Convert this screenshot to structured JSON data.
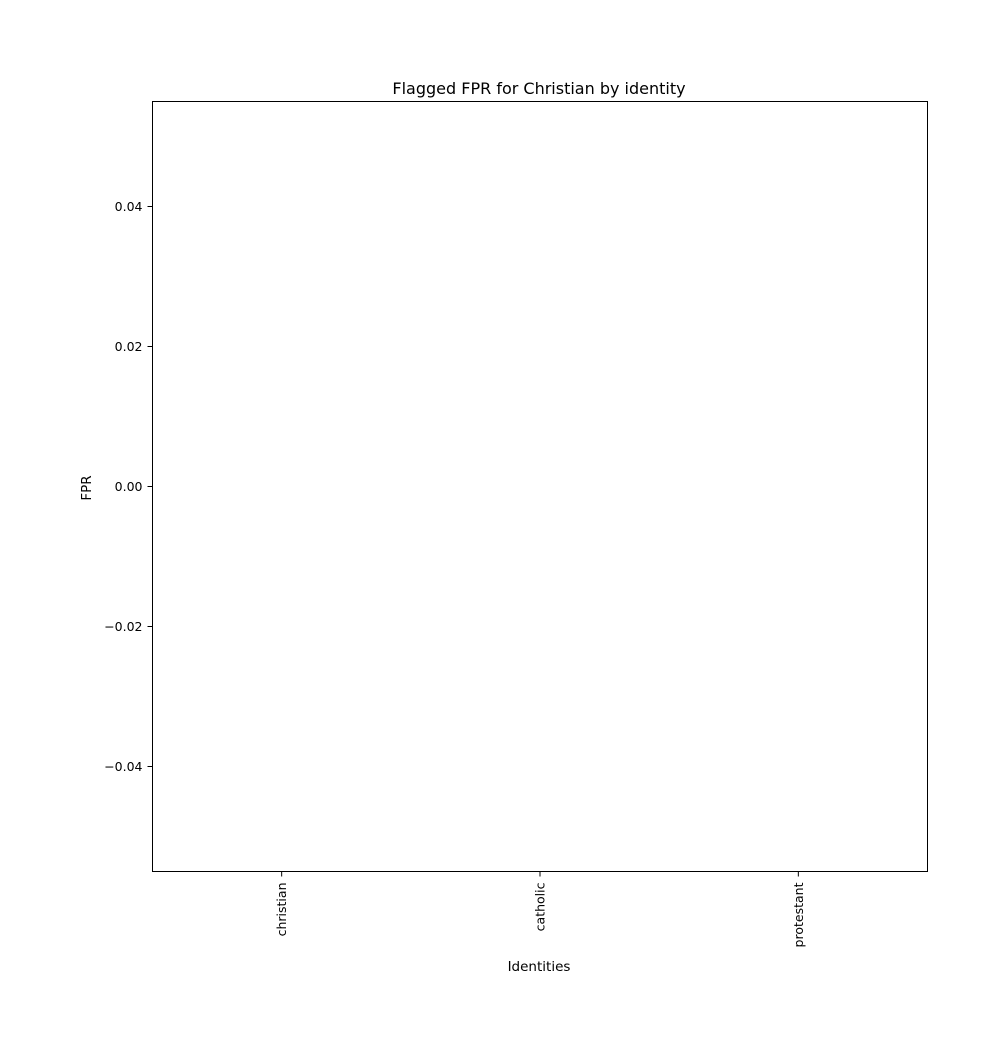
{
  "chart_data": {
    "type": "bar",
    "title": "Flagged FPR for Christian by identity",
    "xlabel": "Identities",
    "ylabel": "FPR",
    "categories": [
      "christian",
      "catholic",
      "protestant"
    ],
    "values": [
      null,
      null,
      null
    ],
    "ylim": [
      -0.055,
      0.055
    ],
    "yticks": [
      -0.04,
      -0.02,
      0.0,
      0.02,
      0.04
    ],
    "ytick_labels": [
      "−0.04",
      "−0.02",
      "0.00",
      "0.02",
      "0.04"
    ],
    "grid": false,
    "legend": "none",
    "colors": {
      "background": "#ffffff",
      "axes": "#000000",
      "text": "#000000"
    }
  }
}
